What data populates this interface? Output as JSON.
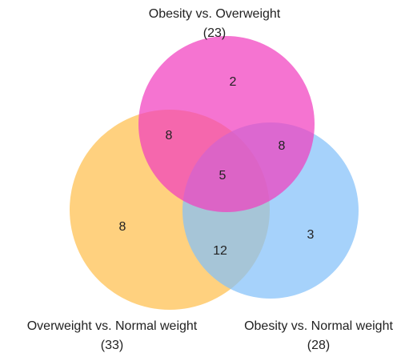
{
  "sets": [
    {
      "label": "Obesity vs. Overweight",
      "count": "(23)",
      "color": "#f13fbf"
    },
    {
      "label": "Overweight vs. Normal weight",
      "count": "(33)",
      "color": "#ffbf4d"
    },
    {
      "label": "Obesity vs. Normal weight",
      "count": "(28)",
      "color": "#84c0fa"
    }
  ],
  "regions": [
    {
      "label": "2"
    },
    {
      "label": "8"
    },
    {
      "label": "8"
    },
    {
      "label": "5"
    },
    {
      "label": "8"
    },
    {
      "label": "12"
    },
    {
      "label": "3"
    }
  ]
}
